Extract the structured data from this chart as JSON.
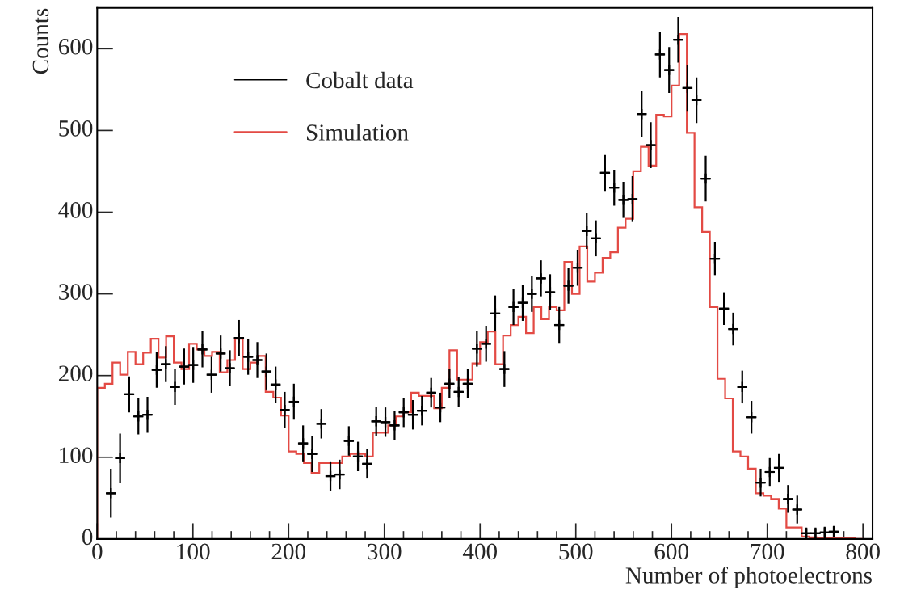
{
  "chart_data": {
    "type": "scatter",
    "xlabel": "Number of photoelectrons",
    "ylabel": "Counts",
    "xlim": [
      0,
      810
    ],
    "ylim": [
      0,
      650
    ],
    "xticks": [
      0,
      100,
      200,
      300,
      400,
      500,
      600,
      700,
      800
    ],
    "yticks": [
      0,
      100,
      200,
      300,
      400,
      500,
      600
    ],
    "legend": "top left",
    "grid": false,
    "series": [
      {
        "name": "Cobalt data",
        "color": "#000000",
        "marker": "cross",
        "x": [
          14.3,
          23.9,
          33.4,
          43.0,
          52.5,
          62.1,
          71.7,
          81.2,
          90.8,
          100.3,
          109.9,
          119.5,
          129.0,
          138.6,
          148.1,
          157.7,
          167.3,
          176.8,
          186.4,
          195.9,
          205.5,
          215.1,
          224.6,
          234.2,
          243.7,
          253.3,
          262.9,
          272.4,
          282.0,
          291.5,
          301.1,
          310.7,
          320.2,
          329.8,
          339.3,
          348.9,
          358.5,
          368.0,
          377.6,
          387.1,
          396.7,
          406.3,
          415.8,
          425.4,
          434.9,
          444.5,
          454.1,
          463.6,
          473.2,
          482.7,
          492.3,
          501.9,
          511.4,
          521.0,
          530.5,
          540.1,
          549.7,
          559.2,
          568.8,
          578.3,
          587.9,
          597.5,
          607.0,
          616.6,
          626.1,
          635.7,
          645.3,
          654.8,
          664.4,
          673.9,
          683.5,
          693.1,
          702.6,
          712.2,
          721.7,
          731.3,
          740.9,
          750.4,
          760.0,
          769.5
        ],
        "values": [
          56,
          99,
          177,
          150,
          152,
          207,
          214,
          186,
          211,
          213,
          232,
          201,
          227,
          209,
          246,
          223,
          219,
          205,
          189,
          158,
          168,
          117,
          104,
          141,
          77,
          79,
          120,
          101,
          92,
          144,
          143,
          139,
          155,
          152,
          157,
          179,
          161,
          190,
          180,
          190,
          233,
          239,
          276,
          208,
          284,
          289,
          300,
          319,
          302,
          262,
          310,
          332,
          377,
          368,
          448,
          430,
          415,
          416,
          520,
          482,
          593,
          574,
          611,
          552,
          537,
          441,
          343,
          282,
          257,
          186,
          149,
          69,
          82,
          87,
          49,
          36,
          7,
          7,
          8,
          9
        ],
        "errors": [
          30,
          30,
          22,
          22,
          22,
          22,
          22,
          22,
          22,
          22,
          22,
          22,
          22,
          22,
          22,
          22,
          22,
          22,
          22,
          22,
          22,
          22,
          22,
          18,
          18,
          18,
          18,
          18,
          18,
          18,
          18,
          18,
          18,
          18,
          18,
          18,
          18,
          18,
          18,
          18,
          22,
          22,
          22,
          22,
          22,
          22,
          22,
          22,
          22,
          22,
          22,
          22,
          22,
          22,
          22,
          22,
          22,
          28,
          28,
          28,
          28,
          28,
          28,
          28,
          28,
          28,
          20,
          20,
          20,
          20,
          20,
          17,
          17,
          17,
          17,
          17,
          7,
          7,
          7,
          7
        ],
        "xerrors": [
          4.8,
          4.8,
          4.8,
          4.8,
          4.8,
          4.8,
          4.8,
          4.8,
          4.8,
          4.8,
          4.8,
          4.8,
          4.8,
          4.8,
          4.8,
          4.8,
          4.8,
          4.8,
          4.8,
          4.8,
          4.8,
          4.8,
          4.8,
          4.8,
          4.8,
          4.8,
          4.8,
          4.8,
          4.8,
          4.8,
          4.8,
          4.8,
          4.8,
          4.8,
          4.8,
          4.8,
          4.8,
          4.8,
          4.8,
          4.8,
          4.8,
          4.8,
          4.8,
          4.8,
          4.8,
          4.8,
          4.8,
          4.8,
          4.8,
          4.8,
          4.8,
          4.8,
          4.8,
          4.8,
          4.8,
          4.8,
          4.8,
          4.8,
          4.8,
          4.8,
          4.8,
          4.8,
          4.8,
          4.8,
          4.8,
          4.8,
          4.8,
          4.8,
          4.8,
          4.8,
          4.8,
          4.8,
          4.8,
          4.8,
          4.8,
          4.8,
          4.8,
          4.8,
          4.8,
          4.8
        ]
      },
      {
        "name": "Simulation",
        "type": "histogram",
        "color": "#e34a44",
        "bins": [
          0,
          8,
          16,
          24,
          32,
          40,
          48,
          56,
          64,
          72,
          80,
          88,
          96,
          104,
          112,
          120,
          128,
          136,
          144,
          152,
          160,
          168,
          176,
          184,
          192,
          200,
          208,
          216,
          224,
          232,
          240,
          248,
          256,
          264,
          272,
          280,
          288,
          296,
          304,
          312,
          320,
          328,
          336,
          344,
          352,
          360,
          368,
          376,
          384,
          392,
          400,
          408,
          416,
          424,
          432,
          440,
          448,
          456,
          464,
          472,
          480,
          488,
          496,
          504,
          512,
          520,
          528,
          536,
          544,
          552,
          560,
          568,
          576,
          584,
          592,
          600,
          608,
          616,
          624,
          632,
          640,
          648,
          656,
          664,
          672,
          680,
          688,
          696,
          704,
          712,
          720,
          728,
          736,
          744,
          752,
          760,
          768,
          776,
          784,
          792,
          800
        ],
        "values": [
          185,
          190,
          216,
          201,
          229,
          214,
          228,
          245,
          222,
          248,
          216,
          208,
          239,
          232,
          224,
          229,
          204,
          219,
          245,
          208,
          216,
          224,
          180,
          173,
          151,
          107,
          104,
          93,
          81,
          93,
          93,
          93,
          101,
          104,
          104,
          101,
          130,
          130,
          139,
          150,
          155,
          179,
          175,
          175,
          160,
          185,
          231,
          195,
          195,
          215,
          241,
          254,
          214,
          249,
          262,
          272,
          252,
          284,
          269,
          284,
          280,
          339,
          300,
          358,
          315,
          326,
          344,
          351,
          381,
          392,
          450,
          480,
          457,
          519,
          517,
          555,
          618,
          497,
          406,
          376,
          284,
          196,
          172,
          107,
          101,
          86,
          56,
          53,
          49,
          37,
          14,
          14,
          3,
          2,
          1,
          1,
          1,
          1,
          1,
          0
        ]
      }
    ]
  }
}
